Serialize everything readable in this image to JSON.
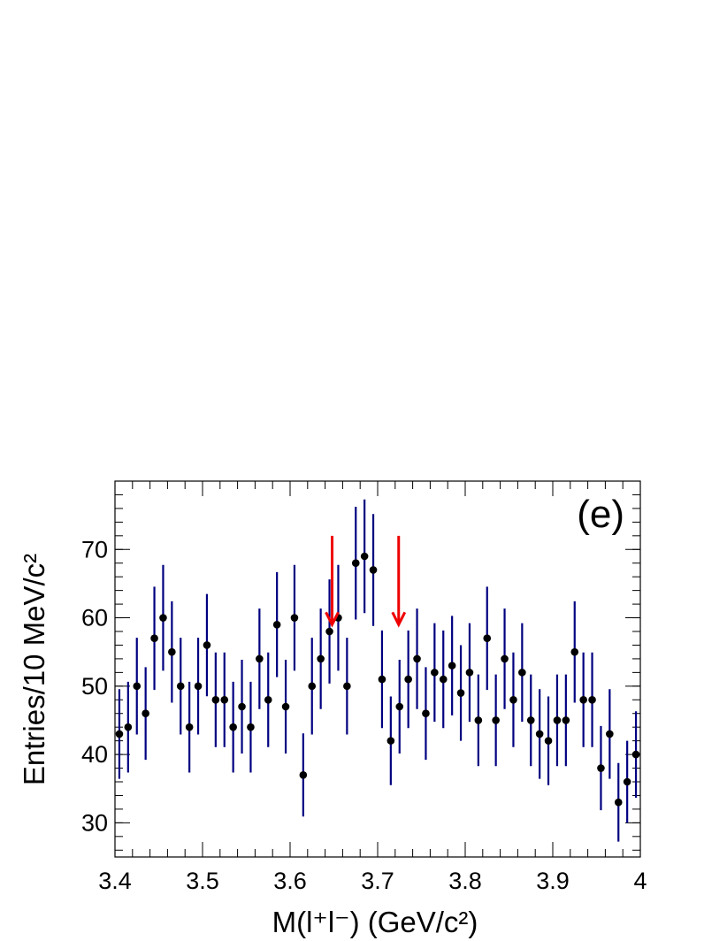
{
  "chart_data": {
    "type": "scatter",
    "panel_label": "(e)",
    "xlabel": "M(l⁺l⁻) (GeV/c²)",
    "ylabel": "Entries/10 MeV/c²",
    "xlim": [
      3.4,
      4.0
    ],
    "ylim": [
      25,
      80
    ],
    "x_ticks": [
      3.4,
      3.5,
      3.6,
      3.7,
      3.8,
      3.9,
      4.0
    ],
    "x_tick_labels": [
      "3.4",
      "3.5",
      "3.6",
      "3.7",
      "3.8",
      "3.9",
      "4"
    ],
    "y_ticks": [
      30,
      40,
      50,
      60,
      70
    ],
    "y_tick_labels": [
      "30",
      "40",
      "50",
      "60",
      "70"
    ],
    "grid": false,
    "series": [
      {
        "x": [
          3.405,
          3.415,
          3.425,
          3.435,
          3.445,
          3.455,
          3.465,
          3.475,
          3.485,
          3.495,
          3.505,
          3.515,
          3.525,
          3.535,
          3.545,
          3.555,
          3.565,
          3.575,
          3.585,
          3.595,
          3.605,
          3.615,
          3.625,
          3.635,
          3.645,
          3.655,
          3.665,
          3.675,
          3.685,
          3.695,
          3.705,
          3.715,
          3.725,
          3.735,
          3.745,
          3.755,
          3.765,
          3.775,
          3.785,
          3.795,
          3.805,
          3.815,
          3.825,
          3.835,
          3.845,
          3.855,
          3.865,
          3.875,
          3.885,
          3.895,
          3.905,
          3.915,
          3.925,
          3.935,
          3.945,
          3.955,
          3.965,
          3.975,
          3.985,
          3.995
        ],
        "y": [
          43,
          44,
          50,
          46,
          57,
          60,
          55,
          50,
          44,
          50,
          56,
          48,
          48,
          44,
          47,
          44,
          54,
          48,
          59,
          47,
          60,
          37,
          50,
          54,
          58,
          60,
          50,
          68,
          69,
          67,
          51,
          42,
          47,
          51,
          54,
          46,
          52,
          51,
          53,
          49,
          52,
          45,
          57,
          45,
          54,
          48,
          52,
          45,
          43,
          42,
          45,
          45,
          55,
          48,
          48,
          38,
          43,
          33,
          36,
          40
        ],
        "color": "#000080"
      }
    ],
    "annotations": [
      {
        "type": "arrow",
        "x": 3.648,
        "y_from": 72,
        "y_to": 59,
        "color": "#ee0000"
      },
      {
        "type": "arrow",
        "x": 3.724,
        "y_from": 72,
        "y_to": 59,
        "color": "#ee0000"
      }
    ]
  }
}
